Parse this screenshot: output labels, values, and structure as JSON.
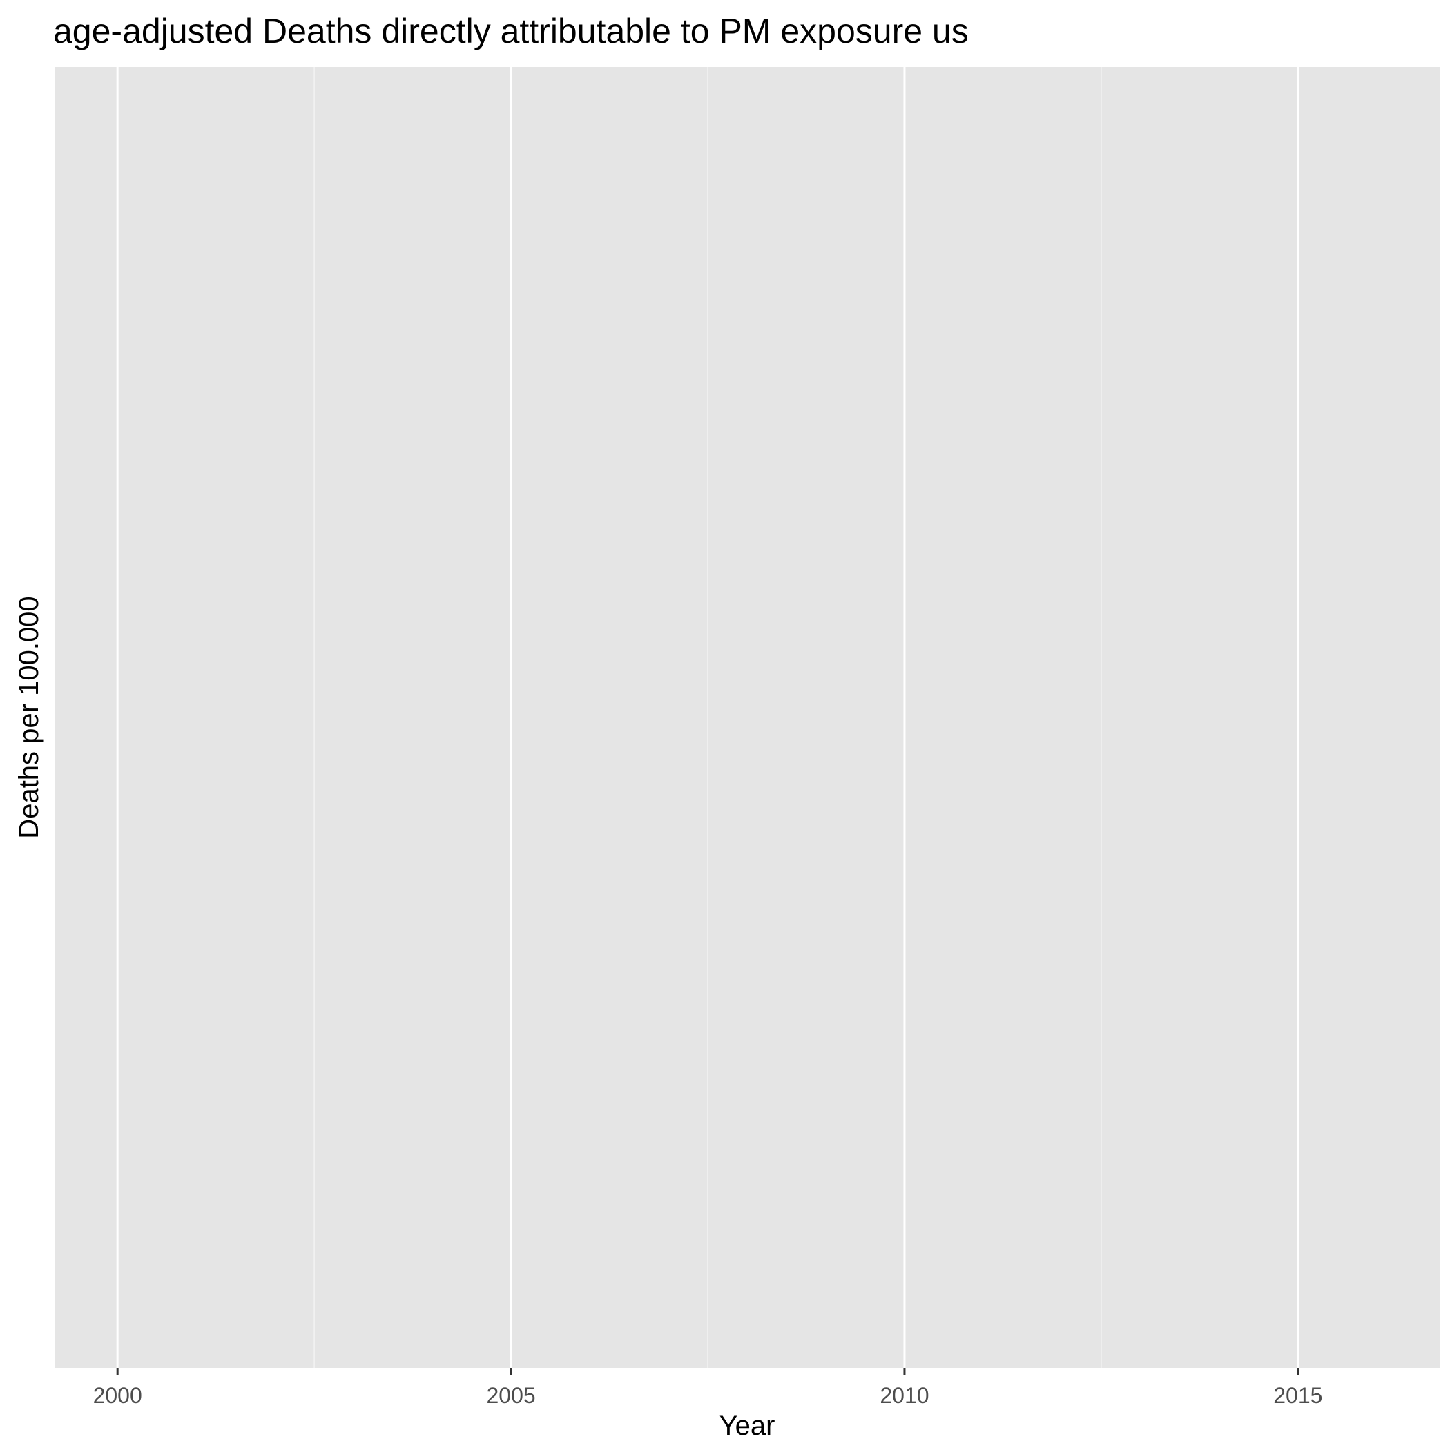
{
  "chart_data": {
    "type": "line",
    "title": "age-adjusted Deaths directly attributable to PM exposure us",
    "xlabel": "Year",
    "ylabel": "Deaths per 100.000",
    "xlim": [
      1999.2,
      2016.8
    ],
    "x_ticks": [
      2000,
      2005,
      2010,
      2015
    ],
    "x_tick_labels": [
      "2000",
      "2005",
      "2010",
      "2015"
    ],
    "x_minor_gridlines": [
      2002.5,
      2007.5,
      2012.5
    ],
    "y_ticks": [],
    "series": [],
    "grid": true,
    "legend": "none",
    "colors": {
      "panel_background": "#e5e5e5",
      "grid_major": "#ffffff",
      "grid_minor": "#f2f2f2",
      "tick_mark": "#333333"
    }
  }
}
